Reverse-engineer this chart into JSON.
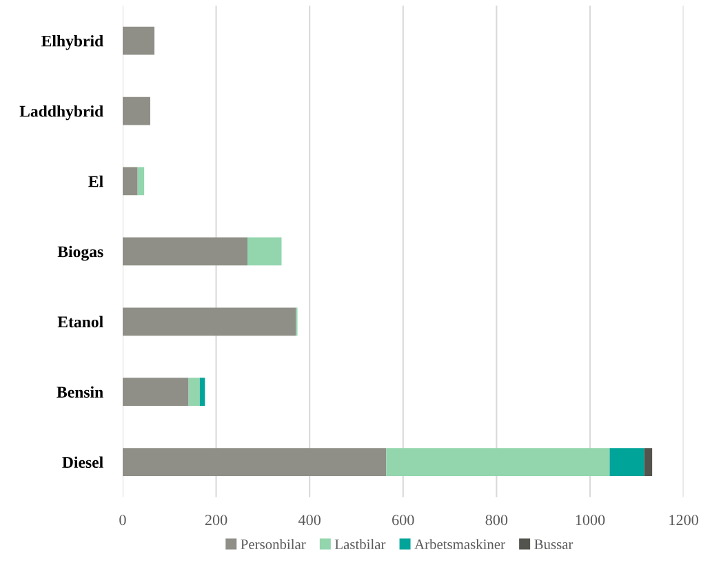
{
  "chart_data": {
    "type": "bar",
    "orientation": "horizontal",
    "stacked": true,
    "categories": [
      "Elhybrid",
      "Laddhybrid",
      "El",
      "Biogas",
      "Etanol",
      "Bensin",
      "Diesel"
    ],
    "series": [
      {
        "name": "Personbilar",
        "color": "#8f8f88",
        "values": [
          68,
          59,
          32,
          267,
          371,
          141,
          564
        ]
      },
      {
        "name": "Lastbilar",
        "color": "#93d5ad",
        "values": [
          0,
          0,
          14,
          73,
          3,
          24,
          478
        ]
      },
      {
        "name": "Arbetsmaskiner",
        "color": "#00a499",
        "values": [
          0,
          0,
          0,
          0,
          0,
          11,
          74
        ]
      },
      {
        "name": "Bussar",
        "color": "#54544f",
        "values": [
          0,
          0,
          0,
          0,
          0,
          0,
          17
        ]
      }
    ],
    "xlim": [
      0,
      1200
    ],
    "xticks": [
      0,
      200,
      400,
      600,
      800,
      1000,
      1200
    ],
    "grid": "x",
    "legend": "bottom"
  }
}
